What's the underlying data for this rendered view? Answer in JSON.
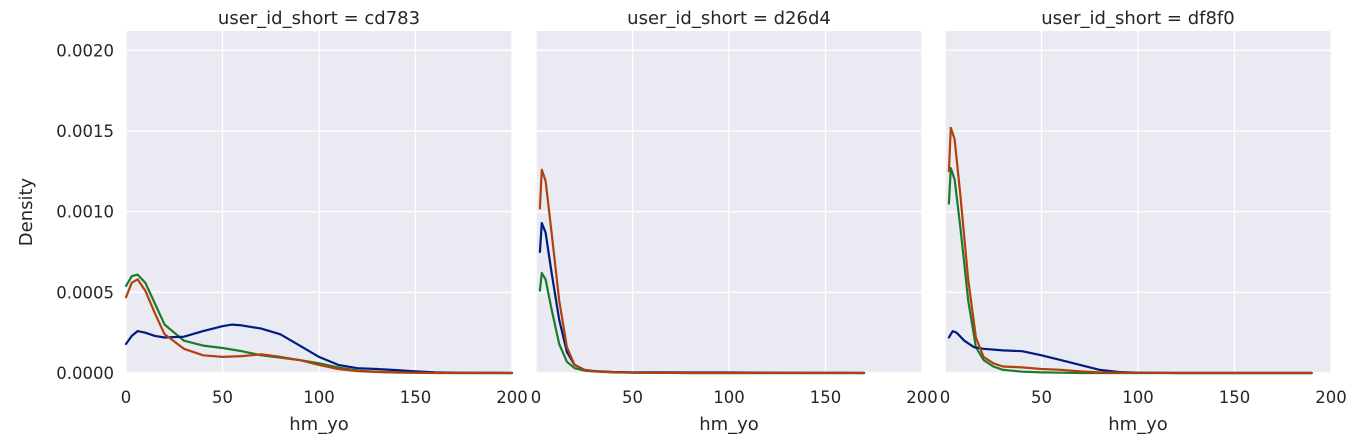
{
  "colors": {
    "series": [
      "#1b7a2b",
      "#001c7f",
      "#b1400d"
    ],
    "panel_background": "#eaeaf2",
    "grid": "#ffffff"
  },
  "chart_data": {
    "type": "line",
    "kind": "kde-density",
    "shared_y": true,
    "ylabel": "Density",
    "ylim": [
      0,
      0.00212
    ],
    "yticks": [
      0.0,
      0.0005,
      0.001,
      0.0015,
      0.002
    ],
    "ytick_labels": [
      "0.0000",
      "0.0005",
      "0.0010",
      "0.0015",
      "0.0020"
    ],
    "grid": true,
    "legend": "none",
    "facets": [
      {
        "title": "user_id_short = cd783",
        "xlabel": "hm_yo",
        "xlim": [
          0,
          200
        ],
        "xticks": [
          0,
          50,
          100,
          150,
          200
        ],
        "xtick_labels": [
          "0",
          "50",
          "100",
          "150",
          "200"
        ],
        "series": [
          {
            "color": "#1b7a2b",
            "x": [
              0,
              3,
              6,
              10,
              15,
              20,
              30,
              40,
              50,
              60,
              70,
              80,
              90,
              100,
              110,
              120,
              130,
              140,
              150,
              160,
              170,
              180,
              190,
              200
            ],
            "y": [
              0.00054,
              0.0006,
              0.00061,
              0.00056,
              0.00043,
              0.0003,
              0.0002,
              0.00017,
              0.000155,
              0.000135,
              0.00011,
              9.5e-05,
              8e-05,
              6e-05,
              3.5e-05,
              1.5e-05,
              8e-06,
              4e-06,
              2e-06,
              1e-06,
              0,
              0,
              0,
              0
            ]
          },
          {
            "color": "#001c7f",
            "x": [
              0,
              3,
              6,
              10,
              15,
              20,
              30,
              40,
              50,
              55,
              60,
              70,
              80,
              90,
              100,
              110,
              120,
              130,
              140,
              150,
              160,
              170,
              180,
              190,
              200
            ],
            "y": [
              0.00018,
              0.00023,
              0.00026,
              0.00025,
              0.00023,
              0.00022,
              0.000225,
              0.00026,
              0.00029,
              0.0003,
              0.000295,
              0.000275,
              0.00024,
              0.00017,
              0.0001,
              5e-05,
              3e-05,
              2.5e-05,
              1.8e-05,
              1e-05,
              4e-06,
              2e-06,
              1e-06,
              5e-07,
              0
            ]
          },
          {
            "color": "#b1400d",
            "x": [
              0,
              3,
              6,
              10,
              15,
              20,
              30,
              40,
              50,
              60,
              70,
              80,
              90,
              100,
              110,
              120,
              130,
              140,
              150,
              160,
              170,
              180,
              190,
              200
            ],
            "y": [
              0.00047,
              0.00056,
              0.00058,
              0.00051,
              0.00037,
              0.00024,
              0.00015,
              0.00011,
              0.0001,
              0.000105,
              0.000115,
              0.0001,
              8e-05,
              5e-05,
              2.5e-05,
              1.2e-05,
              6e-06,
              3e-06,
              1e-06,
              0,
              0,
              0,
              0,
              0
            ]
          }
        ]
      },
      {
        "title": "user_id_short = d26d4",
        "xlabel": "hm_yo",
        "xlim": [
          0,
          200
        ],
        "xticks": [
          0,
          50,
          100,
          150,
          200
        ],
        "xtick_labels": [
          "0",
          "50",
          "100",
          "150",
          "200"
        ],
        "series": [
          {
            "color": "#1b7a2b",
            "x": [
              2,
              3,
              5,
              8,
              12,
              16,
              20,
              25,
              30,
              40,
              50,
              60,
              80,
              100,
              120,
              140,
              160,
              170
            ],
            "y": [
              0.00051,
              0.00062,
              0.00058,
              0.0004,
              0.00018,
              7e-05,
              3e-05,
              1.5e-05,
              1e-05,
              4e-06,
              2e-06,
              1e-06,
              0,
              0,
              0,
              0,
              0,
              0
            ]
          },
          {
            "color": "#001c7f",
            "x": [
              2,
              3,
              5,
              8,
              12,
              16,
              20,
              25,
              30,
              40,
              50,
              60,
              80,
              100,
              120,
              140,
              160,
              170
            ],
            "y": [
              0.00075,
              0.00093,
              0.00087,
              0.00063,
              0.00033,
              0.00013,
              5e-05,
              2e-05,
              1.2e-05,
              6e-06,
              4e-06,
              4e-06,
              3e-06,
              3e-06,
              2e-06,
              1e-06,
              1e-06,
              0
            ]
          },
          {
            "color": "#b1400d",
            "x": [
              2,
              3,
              5,
              8,
              12,
              16,
              20,
              25,
              30,
              40,
              50,
              60,
              80,
              100,
              120,
              140,
              160,
              170
            ],
            "y": [
              0.00102,
              0.00126,
              0.00119,
              0.00088,
              0.00045,
              0.00016,
              5e-05,
              2e-05,
              1e-05,
              5e-06,
              2e-06,
              1e-06,
              0,
              0,
              0,
              0,
              0,
              0
            ]
          }
        ]
      },
      {
        "title": "user_id_short = df8f0",
        "xlabel": "hm_yo",
        "xlim": [
          0,
          200
        ],
        "xticks": [
          0,
          50,
          100,
          150,
          200
        ],
        "xtick_labels": [
          "0",
          "50",
          "100",
          "150",
          "200"
        ],
        "series": [
          {
            "color": "#1b7a2b",
            "x": [
              2,
              3,
              5,
              8,
              12,
              16,
              20,
              25,
              30,
              40,
              50,
              60,
              70,
              80,
              100,
              120,
              150,
              180,
              190
            ],
            "y": [
              0.00105,
              0.00127,
              0.0012,
              0.0009,
              0.00045,
              0.00016,
              8e-05,
              4e-05,
              2e-05,
              8e-06,
              4e-06,
              2e-06,
              0,
              0,
              0,
              0,
              0,
              0,
              0
            ]
          },
          {
            "color": "#001c7f",
            "x": [
              2,
              4,
              6,
              10,
              15,
              20,
              30,
              40,
              50,
              60,
              70,
              80,
              90,
              100,
              110,
              120,
              140,
              160,
              180,
              190
            ],
            "y": [
              0.00022,
              0.00026,
              0.00025,
              0.0002,
              0.00016,
              0.00015,
              0.00014,
              0.000135,
              0.00011,
              8e-05,
              5e-05,
              2e-05,
              6e-06,
              2e-06,
              1e-06,
              0,
              0,
              0,
              0,
              0
            ]
          },
          {
            "color": "#b1400d",
            "x": [
              2,
              3,
              5,
              8,
              12,
              16,
              20,
              25,
              30,
              40,
              50,
              60,
              70,
              80,
              100,
              120,
              150,
              180,
              190
            ],
            "y": [
              0.00125,
              0.00152,
              0.00145,
              0.0011,
              0.00058,
              0.00022,
              0.0001,
              6e-05,
              4e-05,
              3.5e-05,
              2.5e-05,
              2e-05,
              1e-05,
              4e-06,
              1e-06,
              0,
              0,
              0,
              0
            ]
          }
        ]
      }
    ]
  }
}
